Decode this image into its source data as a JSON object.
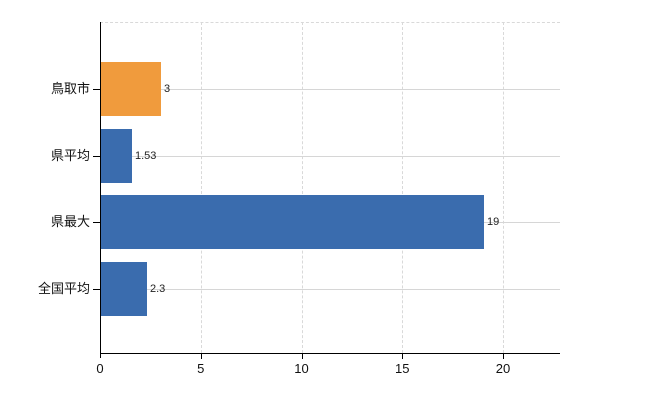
{
  "chart": {
    "background_color": "#ffffff",
    "axis_color": "#000000",
    "gridline_color": "#d9d9d9",
    "row_line_color": "#d6d6d6",
    "text_color": "#111111",
    "value_label_color": "#222222"
  },
  "chart_data": {
    "type": "bar",
    "orientation": "horizontal",
    "title": "",
    "xlabel": "",
    "ylabel": "",
    "categories": [
      "鳥取市",
      "県平均",
      "県最大",
      "全国平均"
    ],
    "values": [
      3,
      1.53,
      19,
      2.3
    ],
    "value_labels": [
      "3",
      "1.53",
      "19",
      "2.3"
    ],
    "bar_colors": [
      "#f09b3d",
      "#3a6cae",
      "#3a6cae",
      "#3a6cae"
    ],
    "x_ticks": [
      0,
      5,
      10,
      15,
      20
    ],
    "x_tick_labels": [
      "0",
      "5",
      "10",
      "15",
      "20"
    ],
    "xlim": [
      0,
      22.8
    ],
    "grid": true,
    "legend": "none",
    "grid_style": "vertical-dashed, horizontal-solid-per-category, dashed-top-border"
  }
}
